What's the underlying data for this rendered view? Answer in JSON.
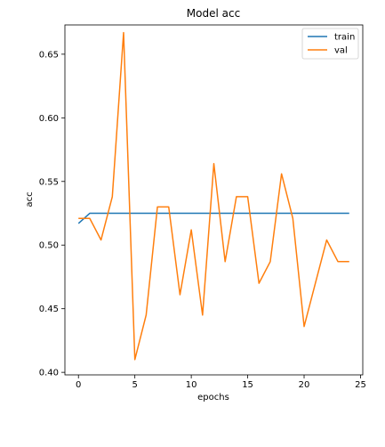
{
  "chart_data": {
    "type": "line",
    "title": "Model acc",
    "xlabel": "epochs",
    "ylabel": "acc",
    "xlim": [
      -1.2,
      25.2
    ],
    "ylim": [
      0.398,
      0.673
    ],
    "xticks": [
      0,
      5,
      10,
      15,
      20,
      25
    ],
    "yticks": [
      0.4,
      0.45,
      0.5,
      0.55,
      0.6,
      0.65
    ],
    "ytick_labels": [
      "0.40",
      "0.45",
      "0.50",
      "0.55",
      "0.60",
      "0.65"
    ],
    "grid": false,
    "legend_position": "top-right",
    "x": [
      0,
      1,
      2,
      3,
      4,
      5,
      6,
      7,
      8,
      9,
      10,
      11,
      12,
      13,
      14,
      15,
      16,
      17,
      18,
      19,
      20,
      21,
      22,
      23,
      24
    ],
    "series": [
      {
        "name": "train",
        "color": "#1f77b4",
        "values": [
          0.517,
          0.525,
          0.525,
          0.525,
          0.525,
          0.525,
          0.525,
          0.525,
          0.525,
          0.525,
          0.525,
          0.525,
          0.525,
          0.525,
          0.525,
          0.525,
          0.525,
          0.525,
          0.525,
          0.525,
          0.525,
          0.525,
          0.525,
          0.525,
          0.525
        ]
      },
      {
        "name": "val",
        "color": "#ff7f0e",
        "values": [
          0.521,
          0.521,
          0.504,
          0.538,
          0.667,
          0.41,
          0.445,
          0.53,
          0.53,
          0.461,
          0.512,
          0.445,
          0.564,
          0.487,
          0.538,
          0.538,
          0.47,
          0.487,
          0.556,
          0.521,
          0.436,
          0.47,
          0.504,
          0.487,
          0.487
        ]
      }
    ]
  }
}
